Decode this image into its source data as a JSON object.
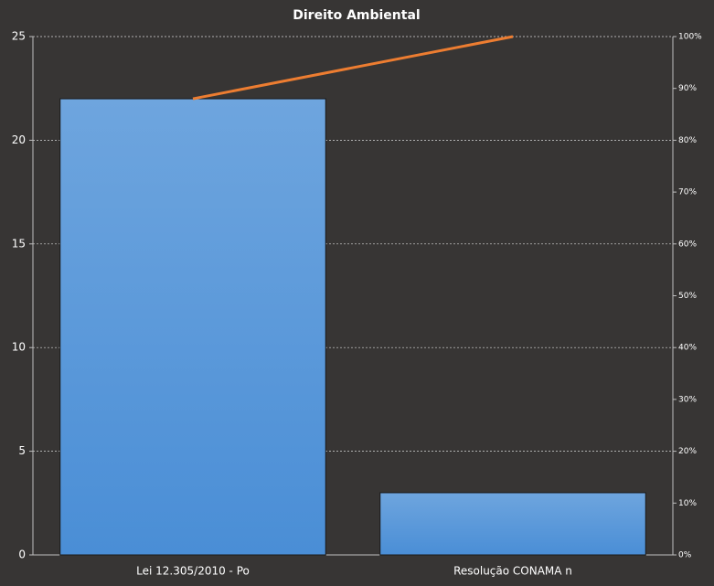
{
  "chart_data": {
    "type": "pareto",
    "title": "Direito  Ambiental",
    "categories": [
      "Lei 12.305/2010 - Po",
      "Resolução CONAMA n"
    ],
    "series": [
      {
        "type": "bar",
        "color": "#4a8ed6",
        "values": [
          22,
          3
        ]
      },
      {
        "type": "line",
        "axis": "y2",
        "color": "#ed7d31",
        "values": [
          88,
          100
        ]
      }
    ],
    "ylim": [
      0,
      25
    ],
    "yticks": [
      0,
      5,
      10,
      15,
      20,
      25
    ],
    "y2lim": [
      0,
      100
    ],
    "y2ticks": [
      {
        "value": 0,
        "label": "0%"
      },
      {
        "value": 10,
        "label": "10%"
      },
      {
        "value": 20,
        "label": "20%"
      },
      {
        "value": 30,
        "label": "30%"
      },
      {
        "value": 40,
        "label": "40%"
      },
      {
        "value": 50,
        "label": "50%"
      },
      {
        "value": 60,
        "label": "60%"
      },
      {
        "value": 70,
        "label": "70%"
      },
      {
        "value": 80,
        "label": "80%"
      },
      {
        "value": 90,
        "label": "90%"
      },
      {
        "value": 100,
        "label": "100%"
      }
    ],
    "grid": true
  }
}
